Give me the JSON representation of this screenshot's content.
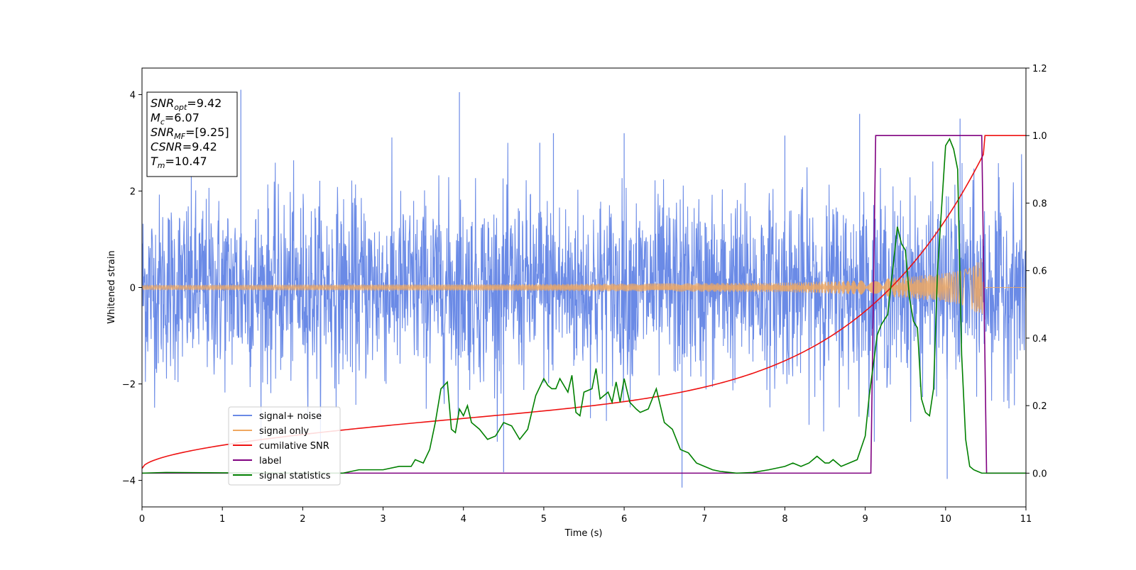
{
  "chart_data": {
    "type": "line",
    "title": "",
    "xlabel": "Time (s)",
    "ylabel": "Whitened strain",
    "ylabel_right": "",
    "xlim": [
      0,
      11
    ],
    "ylim": [
      -4.55,
      4.55
    ],
    "ylim_right": [
      -0.1,
      1.2
    ],
    "x_ticks": [
      0,
      1,
      2,
      3,
      4,
      5,
      6,
      7,
      8,
      9,
      10,
      11
    ],
    "y_ticks": [
      -4,
      -2,
      0,
      2,
      4
    ],
    "y_ticks_right": [
      0.0,
      0.2,
      0.4,
      0.6,
      0.8,
      1.0,
      1.2
    ],
    "grid": false,
    "legend_position": "lower-left",
    "annotation": {
      "lines": [
        {
          "sym": "SNR",
          "sub": "opt",
          "value": "=9.42"
        },
        {
          "sym": "M",
          "sub": "c",
          "value": "=6.07"
        },
        {
          "sym": "SNR",
          "sub": "MF",
          "value": "=[9.25]"
        },
        {
          "sym": "CSNR",
          "sub": "",
          "value": "=9.42"
        },
        {
          "sym": "T",
          "sub": "m",
          "value": "=10.47"
        }
      ]
    },
    "series": [
      {
        "name": "signal+ noise",
        "axis": "left",
        "color": "#6a8ae6",
        "kind": "noise",
        "sigma": 0.95,
        "peaks": [
          [
            1.23,
            4.1
          ],
          [
            3.95,
            4.05
          ],
          [
            4.5,
            -3.83
          ],
          [
            6.72,
            -4.15
          ],
          [
            8.93,
            3.6
          ],
          [
            10.18,
            3.5
          ],
          [
            10.02,
            -3.97
          ],
          [
            4.95,
            3.0
          ],
          [
            6.0,
            3.2
          ],
          [
            5.12,
            3.2
          ],
          [
            8.0,
            3.15
          ]
        ]
      },
      {
        "name": "signal only",
        "axis": "left",
        "color": "#f0a860",
        "kind": "chirp",
        "t_merge": 10.47,
        "amplitude": [
          [
            0,
            0.05
          ],
          [
            5,
            0.07
          ],
          [
            8,
            0.1
          ],
          [
            9,
            0.15
          ],
          [
            9.5,
            0.22
          ],
          [
            10,
            0.3
          ],
          [
            10.3,
            0.4
          ],
          [
            10.46,
            0.7
          ],
          [
            10.47,
            0
          ]
        ]
      },
      {
        "name": "cumilative SNR",
        "axis": "right",
        "color": "#ee1111",
        "kind": "cumulative",
        "t_end": 10.47,
        "y0": 0.007,
        "y1": 0.575,
        "step_to": 1.0,
        "end_x": 11
      },
      {
        "name": "label",
        "axis": "right",
        "color": "#800080",
        "x": [
          0,
          9.07,
          9.13,
          10.45,
          10.51,
          11
        ],
        "y": [
          0,
          0,
          1,
          1,
          0,
          0
        ]
      },
      {
        "name": "signal statistics",
        "axis": "right",
        "color": "#008000",
        "x": [
          0,
          0.3,
          1.0,
          2.0,
          2.5,
          2.7,
          3.0,
          3.2,
          3.35,
          3.4,
          3.5,
          3.58,
          3.65,
          3.72,
          3.8,
          3.85,
          3.9,
          3.95,
          4.0,
          4.05,
          4.1,
          4.2,
          4.3,
          4.4,
          4.5,
          4.6,
          4.7,
          4.8,
          4.9,
          5.0,
          5.05,
          5.1,
          5.15,
          5.2,
          5.3,
          5.35,
          5.4,
          5.45,
          5.5,
          5.6,
          5.65,
          5.7,
          5.8,
          5.85,
          5.9,
          5.95,
          6.0,
          6.07,
          6.15,
          6.2,
          6.3,
          6.4,
          6.5,
          6.6,
          6.7,
          6.8,
          6.9,
          7.0,
          7.1,
          7.2,
          7.4,
          7.6,
          7.8,
          8.0,
          8.1,
          8.2,
          8.3,
          8.4,
          8.5,
          8.55,
          8.6,
          8.7,
          8.8,
          8.9,
          9.0,
          9.05,
          9.1,
          9.15,
          9.2,
          9.28,
          9.35,
          9.4,
          9.45,
          9.5,
          9.55,
          9.6,
          9.65,
          9.7,
          9.75,
          9.8,
          9.85,
          9.9,
          10.0,
          10.05,
          10.1,
          10.15,
          10.2,
          10.25,
          10.3,
          10.35,
          10.4,
          10.45,
          10.5,
          10.55,
          10.6,
          10.7,
          10.8,
          11.0
        ],
        "y": [
          0.0,
          0.002,
          0.001,
          0.0,
          0.0,
          0.01,
          0.01,
          0.02,
          0.02,
          0.04,
          0.03,
          0.07,
          0.15,
          0.25,
          0.27,
          0.13,
          0.12,
          0.19,
          0.17,
          0.2,
          0.15,
          0.13,
          0.1,
          0.11,
          0.15,
          0.14,
          0.1,
          0.13,
          0.23,
          0.28,
          0.26,
          0.25,
          0.25,
          0.28,
          0.24,
          0.29,
          0.18,
          0.17,
          0.24,
          0.25,
          0.31,
          0.22,
          0.24,
          0.21,
          0.27,
          0.21,
          0.28,
          0.21,
          0.19,
          0.18,
          0.19,
          0.25,
          0.15,
          0.13,
          0.07,
          0.06,
          0.03,
          0.02,
          0.01,
          0.005,
          0.0,
          0.002,
          0.01,
          0.02,
          0.03,
          0.02,
          0.03,
          0.05,
          0.03,
          0.03,
          0.04,
          0.02,
          0.03,
          0.04,
          0.11,
          0.23,
          0.32,
          0.41,
          0.44,
          0.47,
          0.62,
          0.73,
          0.68,
          0.66,
          0.52,
          0.45,
          0.43,
          0.22,
          0.18,
          0.17,
          0.25,
          0.6,
          0.97,
          0.99,
          0.96,
          0.9,
          0.35,
          0.1,
          0.02,
          0.01,
          0.005,
          0.0,
          0.0,
          0.0,
          0.0,
          0.0,
          0.0,
          0.0
        ]
      }
    ]
  }
}
